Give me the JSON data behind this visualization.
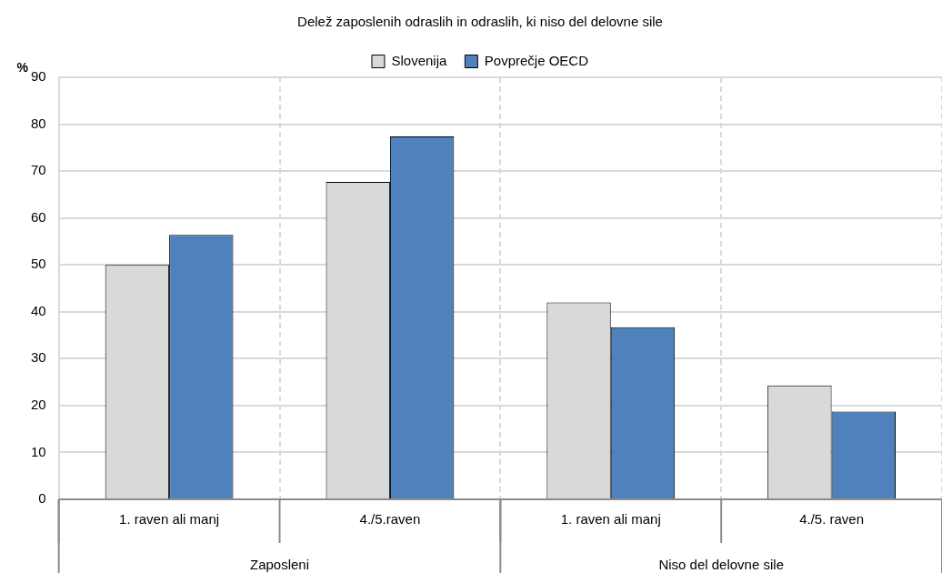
{
  "chart_data": {
    "type": "bar",
    "title": "Delež zaposlenih odraslih in odraslih, ki niso del delovne sile",
    "ylabel": "%",
    "categories": [
      "1. raven ali manj",
      "4./5.raven",
      "1. raven ali manj",
      "4./5. raven"
    ],
    "series": [
      {
        "name": "Slovenija",
        "color": "#d9d9d9",
        "values": [
          50,
          67.7,
          42,
          24.3
        ]
      },
      {
        "name": "Povprečje OECD",
        "color": "#4f81bd",
        "values": [
          56.4,
          77.4,
          36.7,
          18.7
        ]
      }
    ],
    "annotations": [
      "Zaposleni",
      "Niso del delovne sile"
    ],
    "ylim": [
      0,
      90
    ],
    "yticks": [
      0,
      10,
      20,
      30,
      40,
      50,
      60,
      70,
      80,
      90
    ],
    "grid": true,
    "legend": "top"
  }
}
